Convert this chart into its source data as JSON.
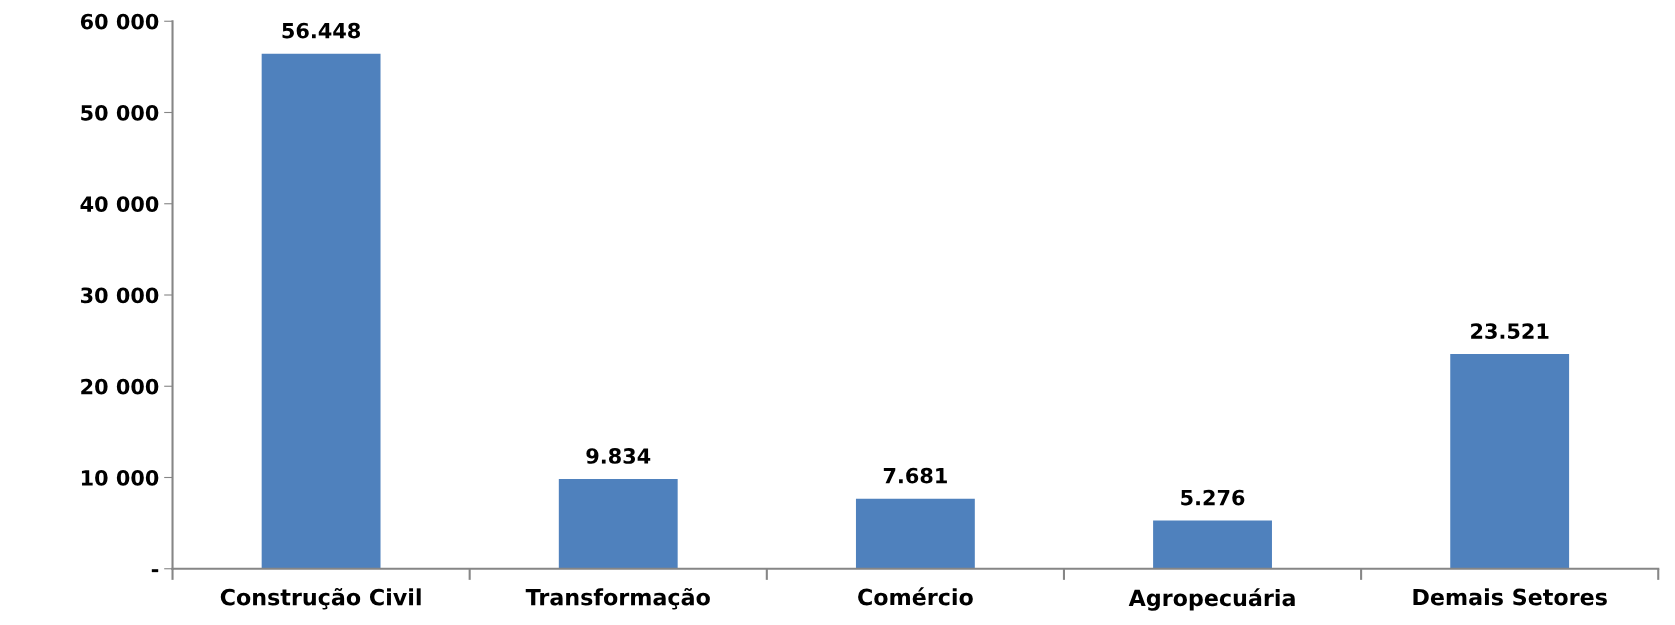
{
  "chart_data": {
    "type": "bar",
    "categories": [
      "Construção Civil",
      "Transformação",
      "Comércio",
      "Agropecuária",
      "Demais Setores"
    ],
    "values": [
      56448,
      9834,
      7681,
      5276,
      23521
    ],
    "value_labels": [
      "56.448",
      "9.834",
      "7.681",
      "5.276",
      "23.521"
    ],
    "color": "#4f81bd",
    "ylim": [
      0,
      60000
    ],
    "yticks": [
      {
        "value": 0,
        "label": "-"
      },
      {
        "value": 10000,
        "label": "10 000"
      },
      {
        "value": 20000,
        "label": "20 000"
      },
      {
        "value": 30000,
        "label": "30 000"
      },
      {
        "value": 40000,
        "label": "40 000"
      },
      {
        "value": 50000,
        "label": "50 000"
      },
      {
        "value": 60000,
        "label": "60 000"
      }
    ],
    "grid": false,
    "legend": false
  }
}
